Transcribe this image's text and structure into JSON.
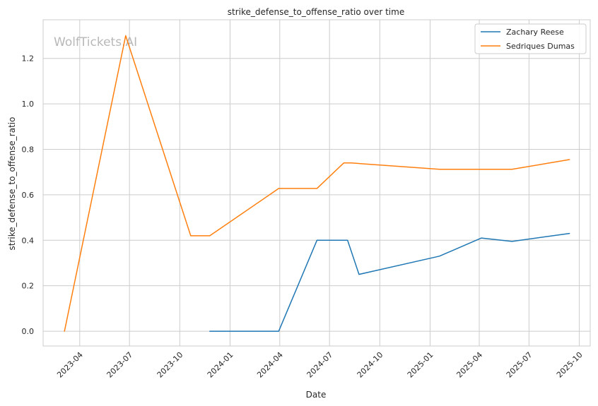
{
  "chart_data": {
    "type": "line",
    "title": "strike_defense_to_offense_ratio over time",
    "xlabel": "Date",
    "ylabel": "strike_defense_to_offense_ratio",
    "watermark": "WolfTickets.AI",
    "xlim": [
      "2023-01-24",
      "2025-10-21"
    ],
    "ylim": [
      -0.065,
      1.37
    ],
    "grid": true,
    "legend_position": "top-right",
    "x_ticks": [
      {
        "date": "2023-04-01",
        "label": "2023-04"
      },
      {
        "date": "2023-07-01",
        "label": "2023-07"
      },
      {
        "date": "2023-10-01",
        "label": "2023-10"
      },
      {
        "date": "2024-01-01",
        "label": "2024-01"
      },
      {
        "date": "2024-04-01",
        "label": "2024-04"
      },
      {
        "date": "2024-07-01",
        "label": "2024-07"
      },
      {
        "date": "2024-10-01",
        "label": "2024-10"
      },
      {
        "date": "2025-01-01",
        "label": "2025-01"
      },
      {
        "date": "2025-04-01",
        "label": "2025-04"
      },
      {
        "date": "2025-07-01",
        "label": "2025-07"
      },
      {
        "date": "2025-10-01",
        "label": "2025-10"
      }
    ],
    "y_ticks": [
      {
        "value": 0.0,
        "label": "0.0"
      },
      {
        "value": 0.2,
        "label": "0.2"
      },
      {
        "value": 0.4,
        "label": "0.4"
      },
      {
        "value": 0.6,
        "label": "0.6"
      },
      {
        "value": 0.8,
        "label": "0.8"
      },
      {
        "value": 1.0,
        "label": "1.0"
      },
      {
        "value": 1.2,
        "label": "1.2"
      }
    ],
    "series": [
      {
        "name": "Zachary Reese",
        "color": "#1f77b4",
        "points": [
          {
            "x": "2023-11-25",
            "y": 0.0
          },
          {
            "x": "2024-03-30",
            "y": 0.0
          },
          {
            "x": "2024-06-08",
            "y": 0.4
          },
          {
            "x": "2024-08-03",
            "y": 0.4
          },
          {
            "x": "2024-08-24",
            "y": 0.25
          },
          {
            "x": "2025-01-18",
            "y": 0.33
          },
          {
            "x": "2025-04-05",
            "y": 0.41
          },
          {
            "x": "2025-05-31",
            "y": 0.395
          },
          {
            "x": "2025-09-13",
            "y": 0.43
          }
        ]
      },
      {
        "name": "Sedriques Dumas",
        "color": "#ff7f0e",
        "points": [
          {
            "x": "2023-03-04",
            "y": 0.0
          },
          {
            "x": "2023-06-24",
            "y": 1.3
          },
          {
            "x": "2023-10-21",
            "y": 0.42
          },
          {
            "x": "2023-11-25",
            "y": 0.42
          },
          {
            "x": "2024-03-30",
            "y": 0.628
          },
          {
            "x": "2024-06-08",
            "y": 0.628
          },
          {
            "x": "2024-07-27",
            "y": 0.74
          },
          {
            "x": "2024-08-10",
            "y": 0.74
          },
          {
            "x": "2025-01-18",
            "y": 0.712
          },
          {
            "x": "2025-05-31",
            "y": 0.712
          },
          {
            "x": "2025-09-13",
            "y": 0.755
          }
        ]
      }
    ]
  }
}
